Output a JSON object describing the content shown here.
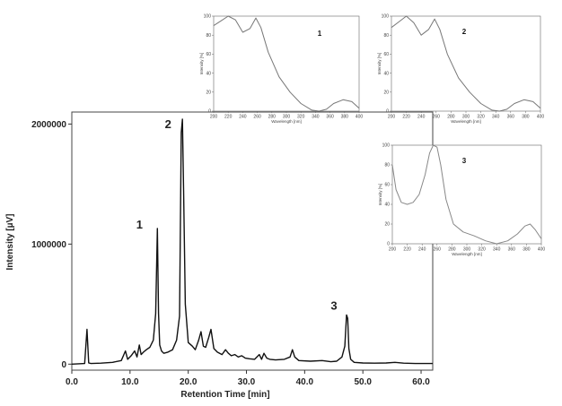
{
  "chart_data": [
    {
      "type": "line",
      "xlabel": "Retention Time [min]",
      "ylabel": "Intensity [µV]",
      "xlim": [
        0,
        62
      ],
      "ylim": [
        -50000,
        2100000
      ],
      "x_ticks": [
        "0.0",
        "10.0",
        "20.0",
        "30.0",
        "40.0",
        "50.0",
        "60.0"
      ],
      "x_tick_values": [
        0,
        10,
        20,
        30,
        40,
        50,
        60
      ],
      "y_ticks": [
        "0",
        "1000000",
        "2000000"
      ],
      "y_tick_values": [
        0,
        1000000,
        2000000
      ],
      "series": [
        {
          "color": "#111111",
          "x": [
            0,
            2.2,
            2.6,
            2.9,
            3.3,
            5,
            7,
            8.5,
            9.2,
            9.6,
            10.2,
            10.8,
            11.2,
            11.6,
            11.9,
            12.3,
            12.8,
            13.4,
            14.0,
            14.4,
            14.7,
            14.9,
            15.1,
            15.4,
            15.8,
            16.5,
            17.3,
            18.0,
            18.5,
            18.8,
            19.0,
            19.2,
            19.5,
            20.0,
            20.7,
            21.2,
            21.8,
            22.2,
            22.6,
            23.0,
            23.5,
            23.9,
            24.4,
            25.0,
            25.8,
            26.4,
            26.9,
            27.4,
            28.0,
            28.6,
            29.2,
            29.8,
            30.5,
            31.4,
            32.2,
            32.6,
            33.0,
            33.5,
            34.0,
            35.0,
            36.5,
            37.5,
            37.9,
            38.3,
            39.0,
            41.0,
            43.0,
            44.5,
            45.5,
            46.4,
            46.9,
            47.2,
            47.4,
            47.6,
            47.9,
            48.5,
            50,
            52,
            54,
            55.5,
            57,
            59,
            62
          ],
          "y": [
            0,
            5000,
            290000,
            10000,
            5000,
            8000,
            15000,
            30000,
            110000,
            40000,
            70000,
            110000,
            60000,
            160000,
            80000,
            100000,
            120000,
            140000,
            200000,
            420000,
            1130000,
            420000,
            160000,
            110000,
            90000,
            100000,
            120000,
            200000,
            400000,
            1930000,
            2040000,
            1450000,
            500000,
            180000,
            150000,
            120000,
            200000,
            270000,
            150000,
            140000,
            220000,
            290000,
            130000,
            100000,
            80000,
            120000,
            90000,
            70000,
            80000,
            60000,
            70000,
            50000,
            45000,
            40000,
            80000,
            40000,
            90000,
            50000,
            40000,
            35000,
            40000,
            60000,
            120000,
            60000,
            30000,
            25000,
            30000,
            20000,
            25000,
            60000,
            150000,
            410000,
            380000,
            130000,
            40000,
            15000,
            10000,
            8000,
            10000,
            15000,
            8000,
            5000,
            5000
          ]
        }
      ],
      "annotations": [
        {
          "text": "1",
          "x": 14.7,
          "y": 1130000
        },
        {
          "text": "2",
          "x": 19.0,
          "y": 2040000
        },
        {
          "text": "3",
          "x": 47.2,
          "y": 410000
        }
      ]
    },
    {
      "type": "line",
      "annotation": "1",
      "xlabel": "Wavelength [nm]",
      "ylabel": "Intensity [%]",
      "xlim": [
        200,
        400
      ],
      "ylim": [
        0,
        100
      ],
      "x_ticks": [
        "200",
        "220",
        "240",
        "260",
        "280",
        "300",
        "320",
        "340",
        "360",
        "380",
        "400"
      ],
      "y_ticks": [
        "0",
        "20",
        "40",
        "60",
        "80",
        "100"
      ],
      "series": [
        {
          "color": "#777777",
          "x": [
            200,
            210,
            220,
            230,
            240,
            250,
            258,
            265,
            275,
            290,
            305,
            320,
            335,
            345,
            355,
            365,
            378,
            390,
            400
          ],
          "y": [
            90,
            95,
            100,
            96,
            83,
            87,
            98,
            88,
            62,
            36,
            20,
            8,
            1,
            0,
            2,
            8,
            12,
            10,
            3
          ]
        }
      ]
    },
    {
      "type": "line",
      "annotation": "2",
      "xlabel": "Wavelength [nm]",
      "ylabel": "Intensity [%]",
      "xlim": [
        200,
        400
      ],
      "ylim": [
        0,
        100
      ],
      "x_ticks": [
        "200",
        "220",
        "240",
        "260",
        "280",
        "300",
        "320",
        "340",
        "360",
        "380",
        "400"
      ],
      "y_ticks": [
        "0",
        "20",
        "40",
        "60",
        "80",
        "100"
      ],
      "series": [
        {
          "color": "#777777",
          "x": [
            200,
            210,
            220,
            230,
            240,
            250,
            258,
            265,
            275,
            290,
            305,
            320,
            335,
            345,
            355,
            365,
            378,
            390,
            400
          ],
          "y": [
            88,
            94,
            100,
            93,
            80,
            86,
            97,
            86,
            60,
            35,
            20,
            8,
            1,
            0,
            2,
            8,
            12,
            10,
            3
          ]
        }
      ]
    },
    {
      "type": "line",
      "annotation": "3",
      "xlabel": "Wavelength [nm]",
      "ylabel": "Intensity [%]",
      "xlim": [
        200,
        400
      ],
      "ylim": [
        0,
        100
      ],
      "x_ticks": [
        "200",
        "220",
        "240",
        "260",
        "280",
        "300",
        "320",
        "340",
        "360",
        "380",
        "400"
      ],
      "y_ticks": [
        "0",
        "20",
        "40",
        "60",
        "80",
        "100"
      ],
      "series": [
        {
          "color": "#888888",
          "x": [
            200,
            205,
            212,
            220,
            228,
            236,
            244,
            250,
            255,
            260,
            265,
            272,
            282,
            295,
            310,
            325,
            340,
            355,
            368,
            378,
            385,
            392,
            400
          ],
          "y": [
            80,
            55,
            42,
            40,
            42,
            50,
            70,
            92,
            100,
            98,
            80,
            45,
            20,
            12,
            8,
            3,
            0,
            3,
            10,
            18,
            20,
            14,
            5
          ]
        }
      ]
    }
  ]
}
